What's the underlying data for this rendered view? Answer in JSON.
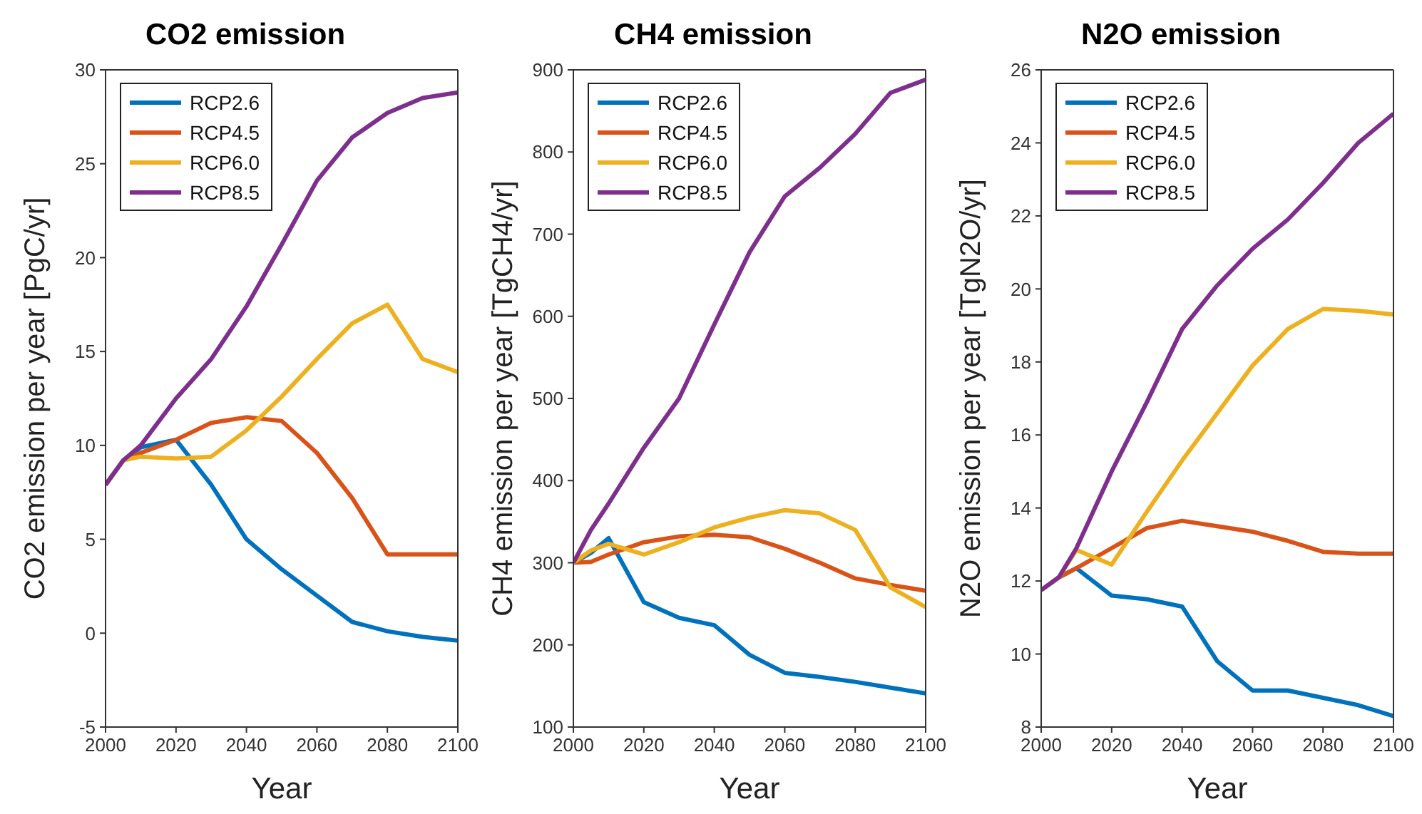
{
  "chart_data": [
    {
      "type": "line",
      "title": "CO2 emission",
      "xlabel": "Year",
      "ylabel": "CO2 emission per year [PgC/yr]",
      "x": [
        2000,
        2005,
        2010,
        2020,
        2030,
        2040,
        2050,
        2060,
        2070,
        2080,
        2090,
        2100
      ],
      "xlim": [
        2000,
        2100
      ],
      "xticks": [
        2000,
        2020,
        2040,
        2060,
        2080,
        2100
      ],
      "ylim": [
        -5,
        30
      ],
      "yticks": [
        -5,
        0,
        5,
        10,
        15,
        20,
        25,
        30
      ],
      "legend": "top left",
      "series": [
        {
          "name": "RCP2.6",
          "color": "#0072bd",
          "values": [
            7.9,
            9.2,
            9.9,
            10.3,
            7.9,
            5.0,
            3.4,
            2.0,
            0.6,
            0.1,
            -0.2,
            -0.4
          ]
        },
        {
          "name": "RCP4.5",
          "color": "#d95319",
          "values": [
            7.9,
            9.2,
            9.6,
            10.3,
            11.2,
            11.5,
            11.3,
            9.6,
            7.2,
            4.2,
            4.2,
            4.2
          ]
        },
        {
          "name": "RCP6.0",
          "color": "#edb120",
          "values": [
            7.9,
            9.2,
            9.4,
            9.3,
            9.4,
            10.8,
            12.6,
            14.6,
            16.5,
            17.5,
            14.6,
            13.9
          ]
        },
        {
          "name": "RCP8.5",
          "color": "#7e2f8e",
          "values": [
            7.9,
            9.2,
            10.0,
            12.5,
            14.6,
            17.4,
            20.7,
            24.1,
            26.4,
            27.7,
            28.5,
            28.8
          ]
        }
      ]
    },
    {
      "type": "line",
      "title": "CH4 emission",
      "xlabel": "Year",
      "ylabel": "CH4 emission per year [TgCH4/yr]",
      "x": [
        2000,
        2005,
        2010,
        2020,
        2030,
        2040,
        2050,
        2060,
        2070,
        2080,
        2090,
        2100
      ],
      "xlim": [
        2000,
        2100
      ],
      "xticks": [
        2000,
        2020,
        2040,
        2060,
        2080,
        2100
      ],
      "ylim": [
        100,
        900
      ],
      "yticks": [
        100,
        200,
        300,
        400,
        500,
        600,
        700,
        800,
        900
      ],
      "legend": "top left",
      "series": [
        {
          "name": "RCP2.6",
          "color": "#0072bd",
          "values": [
            300,
            312,
            330,
            252,
            233,
            224,
            188,
            166,
            161,
            155,
            148,
            141
          ]
        },
        {
          "name": "RCP4.5",
          "color": "#d95319",
          "values": [
            300,
            301,
            310,
            325,
            332,
            334,
            331,
            317,
            300,
            281,
            273,
            266
          ]
        },
        {
          "name": "RCP6.0",
          "color": "#edb120",
          "values": [
            300,
            315,
            323,
            310,
            325,
            343,
            355,
            364,
            360,
            340,
            270,
            246
          ]
        },
        {
          "name": "RCP8.5",
          "color": "#7e2f8e",
          "values": [
            300,
            340,
            372,
            440,
            500,
            590,
            678,
            746,
            781,
            822,
            872,
            888
          ]
        }
      ]
    },
    {
      "type": "line",
      "title": "N2O emission",
      "xlabel": "Year",
      "ylabel": "N2O emission per year [TgN2O/yr]",
      "x": [
        2000,
        2005,
        2010,
        2020,
        2030,
        2040,
        2050,
        2060,
        2070,
        2080,
        2090,
        2100
      ],
      "xlim": [
        2000,
        2100
      ],
      "xticks": [
        2000,
        2020,
        2040,
        2060,
        2080,
        2100
      ],
      "ylim": [
        8,
        26
      ],
      "yticks": [
        8,
        10,
        12,
        14,
        16,
        18,
        20,
        22,
        24,
        26
      ],
      "legend": "top left",
      "series": [
        {
          "name": "RCP2.6",
          "color": "#0072bd",
          "values": [
            11.75,
            12.1,
            12.35,
            11.6,
            11.5,
            11.3,
            9.8,
            9.0,
            9.0,
            8.8,
            8.6,
            8.3
          ]
        },
        {
          "name": "RCP4.5",
          "color": "#d95319",
          "values": [
            11.75,
            12.1,
            12.35,
            12.9,
            13.45,
            13.65,
            13.5,
            13.35,
            13.1,
            12.8,
            12.75,
            12.75
          ]
        },
        {
          "name": "RCP6.0",
          "color": "#edb120",
          "values": [
            11.75,
            12.1,
            12.85,
            12.45,
            13.9,
            15.3,
            16.6,
            17.9,
            18.9,
            19.45,
            19.4,
            19.3
          ]
        },
        {
          "name": "RCP8.5",
          "color": "#7e2f8e",
          "values": [
            11.75,
            12.1,
            12.9,
            15.0,
            16.9,
            18.9,
            20.1,
            21.1,
            21.9,
            22.9,
            24.0,
            24.8
          ]
        }
      ]
    }
  ]
}
